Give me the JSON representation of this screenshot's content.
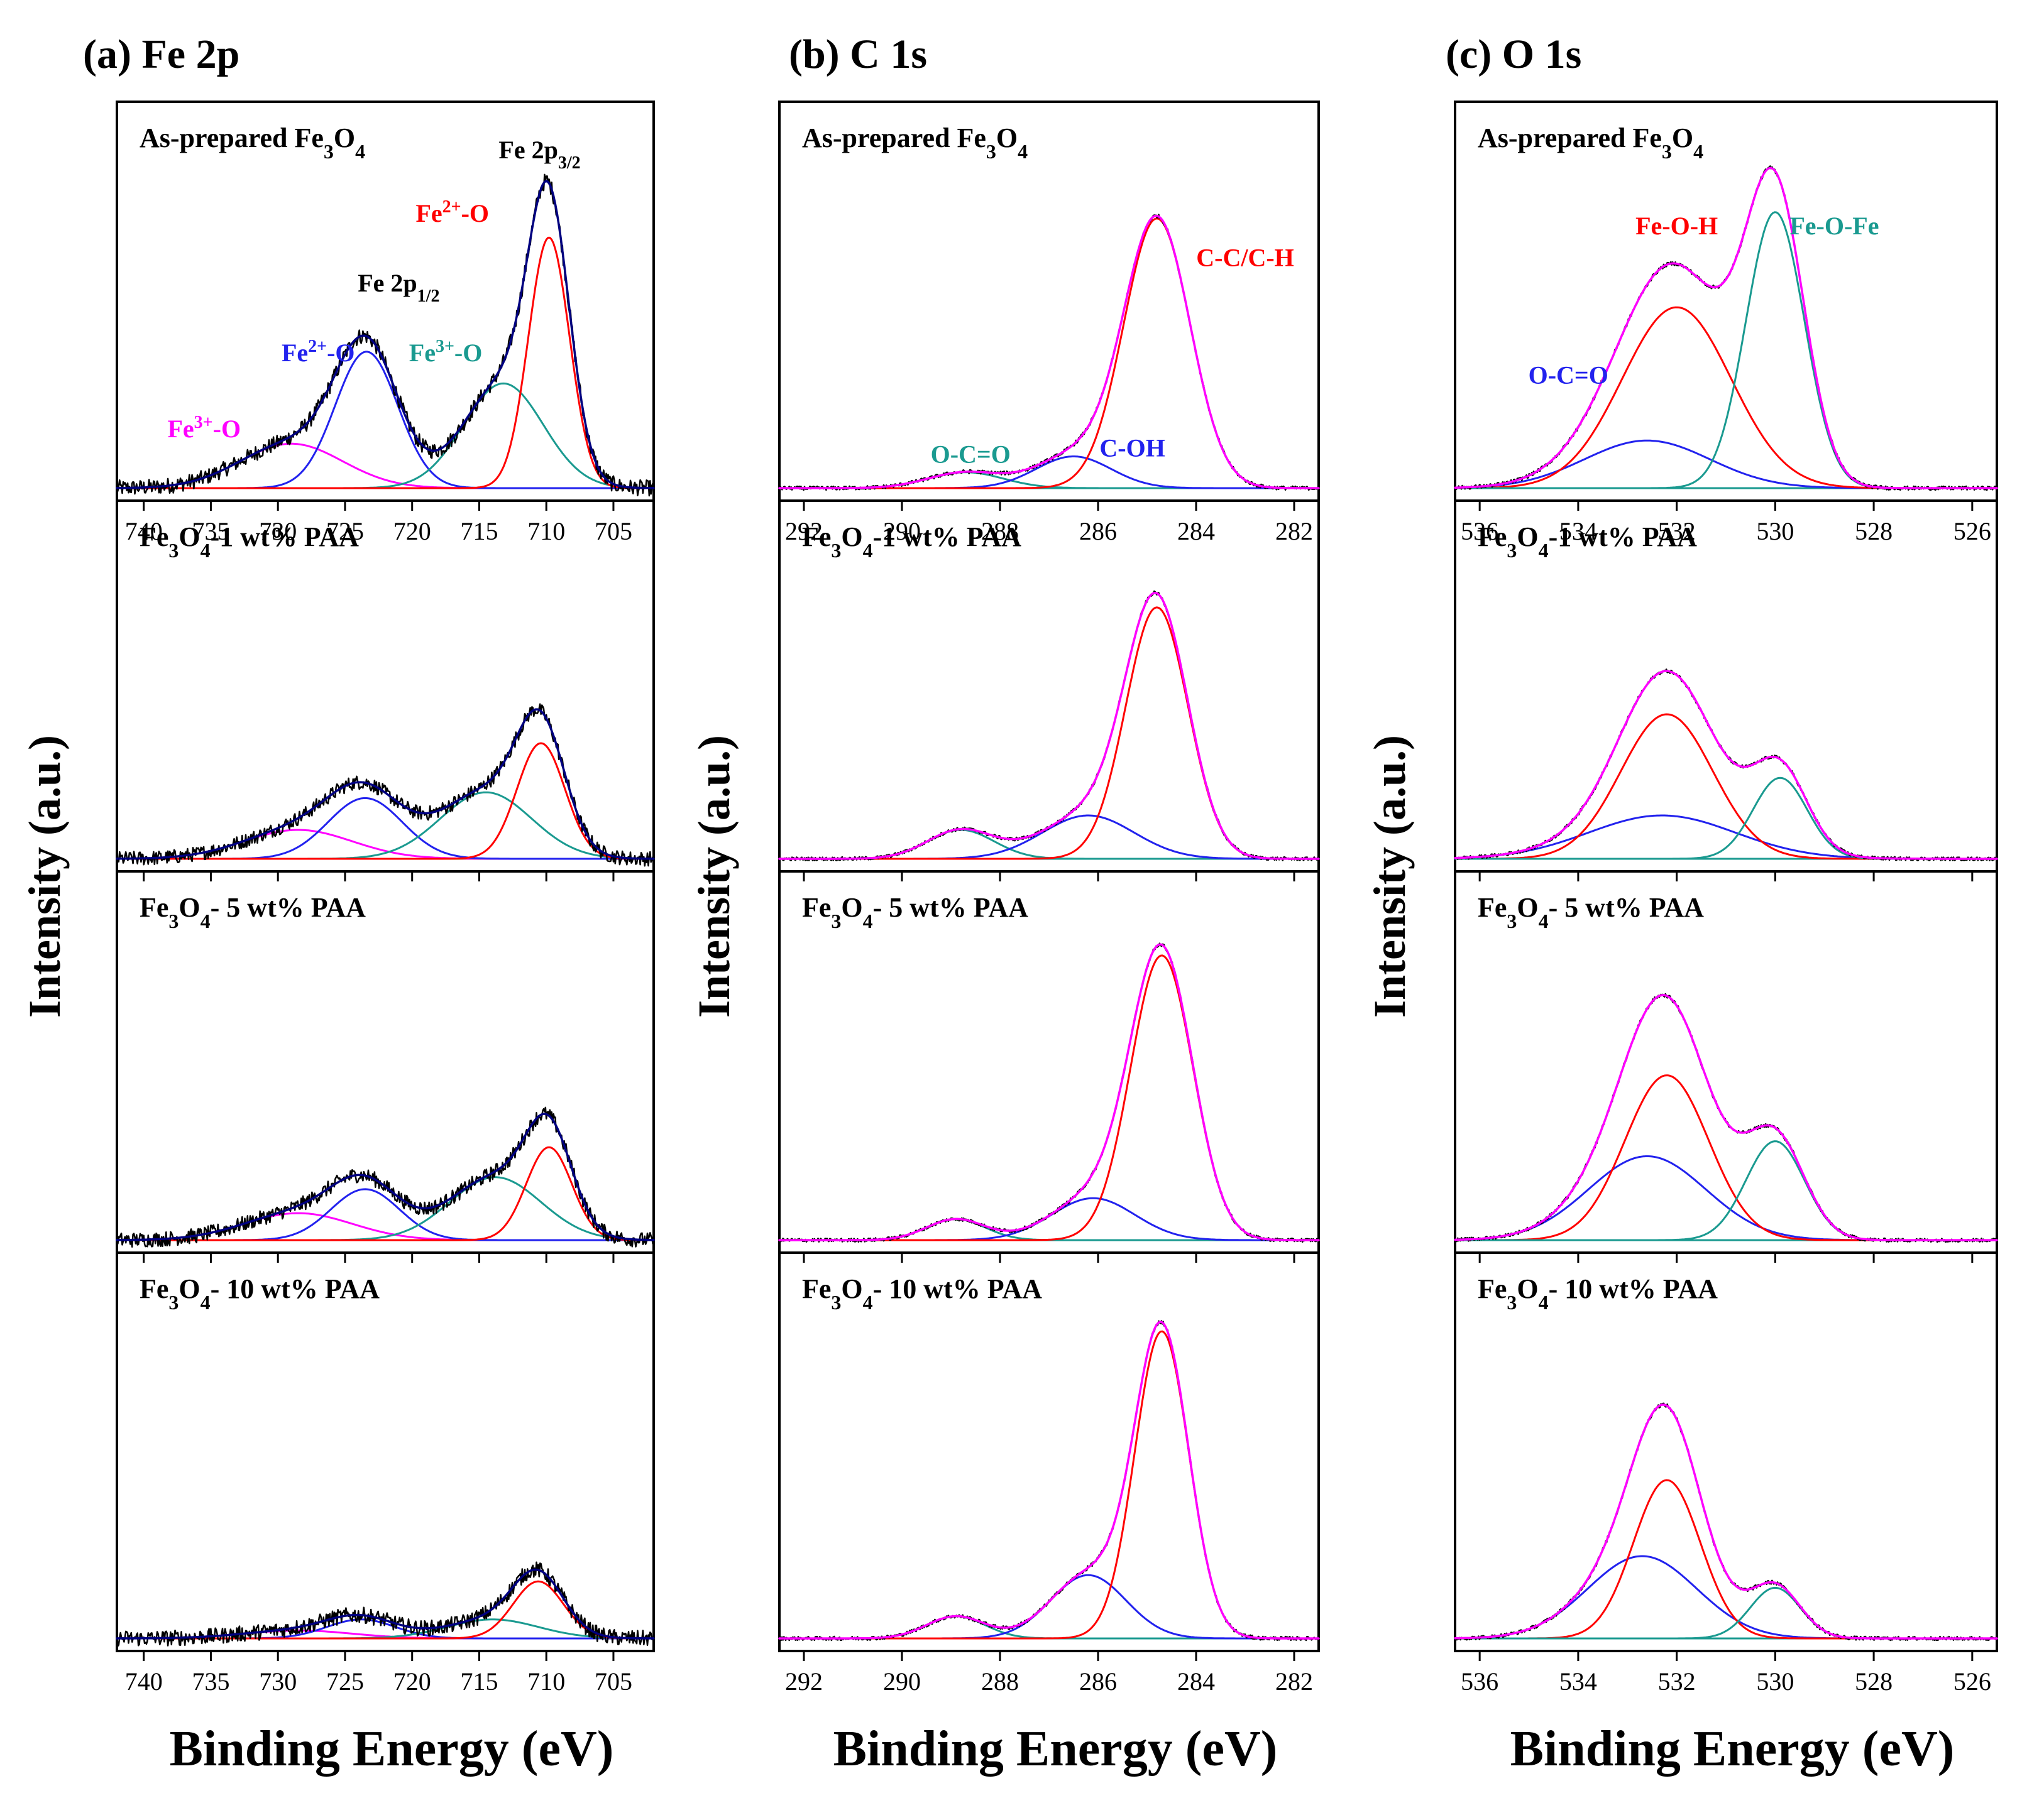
{
  "colors": {
    "raw": "#000000",
    "envelope": "#ff00ff",
    "red": "#ff0000",
    "blue": "#2222ee",
    "teal": "#1a9a90",
    "magenta": "#ff00ff",
    "olive": "#9a9a00",
    "frame": "#000000"
  },
  "figure": {
    "ylabel": "Intensity (a.u.)",
    "xlabel": "Binding Energy (eV)"
  },
  "chart_data": [
    {
      "type": "line",
      "panel_label": "(a) Fe 2p",
      "xlabel": "Binding Energy (eV)",
      "ylabel": "Intensity (a.u.)",
      "xlim": [
        742,
        702
      ],
      "xticks": [
        "740",
        "735",
        "730",
        "725",
        "720",
        "715",
        "710",
        "705"
      ],
      "xtick_values": [
        740,
        735,
        730,
        725,
        720,
        715,
        710,
        705
      ],
      "ylim": [
        0,
        1
      ],
      "rows": [
        {
          "sample": {
            "pre": "As-prepared Fe",
            "s1": "3",
            "mid": "O",
            "s2": "4",
            "post": ""
          },
          "envelope_color": "#000080",
          "baseline_color": "#1a9a90",
          "peaks": [
            {
              "label": "Fe3+-O",
              "center": 729,
              "fwhm": 9.0,
              "height": 0.14,
              "color": "#ff00ff"
            },
            {
              "label": "Fe2+-O",
              "center": 723.4,
              "fwhm": 5.5,
              "height": 0.43,
              "color": "#2222ee"
            },
            {
              "label": "Fe3+-O",
              "center": 713.2,
              "fwhm": 7.0,
              "height": 0.33,
              "color": "#1a9a90"
            },
            {
              "label": "Fe2+-O",
              "center": 709.8,
              "fwhm": 3.6,
              "height": 0.79,
              "color": "#ff0000"
            }
          ],
          "annotations": [
            {
              "pre": "Fe 2p",
              "sub": "1/2",
              "sup": "",
              "post": "",
              "x": 721,
              "y": 0.62,
              "color": "#000000"
            },
            {
              "pre": "Fe 2p",
              "sub": "3/2",
              "sup": "",
              "post": "",
              "x": 710.5,
              "y": 1.04,
              "color": "#000000"
            },
            {
              "pre": "Fe",
              "sub": "",
              "sup": "2+",
              "post": "-O",
              "x": 727,
              "y": 0.4,
              "color": "#2222ee"
            },
            {
              "pre": "Fe",
              "sub": "",
              "sup": "2+",
              "post": "-O",
              "x": 717,
              "y": 0.84,
              "color": "#ff0000"
            },
            {
              "pre": "Fe",
              "sub": "",
              "sup": "3+",
              "post": "-O",
              "x": 717.5,
              "y": 0.4,
              "color": "#1a9a90"
            },
            {
              "pre": "Fe",
              "sub": "",
              "sup": "3+",
              "post": "-O",
              "x": 735.5,
              "y": 0.16,
              "color": "#ff00ff"
            }
          ]
        },
        {
          "sample": {
            "pre": "Fe",
            "s1": "3",
            "mid": "O",
            "s2": "4",
            "post": "-1 wt% PAA"
          },
          "envelope_color": "#000080",
          "baseline_color": "#9a9a00",
          "peaks": [
            {
              "label": "Fe3+-O",
              "center": 728.5,
              "fwhm": 9.5,
              "height": 0.1,
              "color": "#ff00ff"
            },
            {
              "label": "Fe2+-O",
              "center": 723.5,
              "fwhm": 6.5,
              "height": 0.21,
              "color": "#2222ee"
            },
            {
              "label": "Fe3+-O",
              "center": 714.5,
              "fwhm": 8.0,
              "height": 0.23,
              "color": "#1a9a90"
            },
            {
              "label": "Fe2+-O",
              "center": 710.4,
              "fwhm": 4.2,
              "height": 0.4,
              "color": "#ff0000"
            }
          ],
          "annotations": []
        },
        {
          "sample": {
            "pre": "Fe",
            "s1": "3",
            "mid": "O",
            "s2": "4",
            "post": "- 5 wt% PAA"
          },
          "envelope_color": "#000080",
          "baseline_color": "#9a9a00",
          "peaks": [
            {
              "label": "Fe3+-O",
              "center": 728.5,
              "fwhm": 9.5,
              "height": 0.09,
              "color": "#ff00ff"
            },
            {
              "label": "Fe2+-O",
              "center": 723.5,
              "fwhm": 6.0,
              "height": 0.17,
              "color": "#2222ee"
            },
            {
              "label": "Fe3+-O",
              "center": 713.8,
              "fwhm": 8.0,
              "height": 0.21,
              "color": "#1a9a90"
            },
            {
              "label": "Fe2+-O",
              "center": 709.8,
              "fwhm": 4.0,
              "height": 0.31,
              "color": "#ff0000"
            }
          ],
          "annotations": []
        },
        {
          "sample": {
            "pre": "Fe",
            "s1": "3",
            "mid": "O",
            "s2": "4",
            "post": "- 10 wt% PAA"
          },
          "envelope_color": "#000080",
          "baseline_color": "#9a9a00",
          "peaks": [
            {
              "label": "Fe3+-O",
              "center": 728.5,
              "fwhm": 9.5,
              "height": 0.025,
              "color": "#ff00ff"
            },
            {
              "label": "Fe2+-O",
              "center": 723.8,
              "fwhm": 6.0,
              "height": 0.06,
              "color": "#2222ee"
            },
            {
              "label": "Fe3+-O",
              "center": 714.0,
              "fwhm": 8.0,
              "height": 0.06,
              "color": "#1a9a90"
            },
            {
              "label": "Fe2+-O",
              "center": 710.6,
              "fwhm": 4.4,
              "height": 0.18,
              "color": "#ff0000"
            }
          ],
          "annotations": []
        }
      ]
    },
    {
      "type": "line",
      "panel_label": "(b) C 1s",
      "xlabel": "Binding Energy (eV)",
      "ylabel": "Intensity (a.u.)",
      "xlim": [
        292.5,
        281.5
      ],
      "xticks": [
        "292",
        "290",
        "288",
        "286",
        "284",
        "282"
      ],
      "xtick_values": [
        292,
        290,
        288,
        286,
        284,
        282
      ],
      "ylim": [
        0,
        1
      ],
      "rows": [
        {
          "sample": {
            "pre": "As-prepared Fe",
            "s1": "3",
            "mid": "O",
            "s2": "4",
            "post": ""
          },
          "envelope_color": "#ff00ff",
          "baseline_color": "#1a9a90",
          "peaks": [
            {
              "label": "O-C=O",
              "center": 288.7,
              "fwhm": 1.8,
              "height": 0.05,
              "color": "#1a9a90"
            },
            {
              "label": "C-OH",
              "center": 286.5,
              "fwhm": 1.8,
              "height": 0.1,
              "color": "#2222ee"
            },
            {
              "label": "C-C/C-H",
              "center": 284.8,
              "fwhm": 1.6,
              "height": 0.85,
              "color": "#ff0000"
            }
          ],
          "annotations": [
            {
              "pre": "C-C/C-H",
              "sub": "",
              "sup": "",
              "post": "",
              "x": 283.0,
              "y": 0.7,
              "color": "#ff0000"
            },
            {
              "pre": "C-OH",
              "sub": "",
              "sup": "",
              "post": "",
              "x": 285.3,
              "y": 0.1,
              "color": "#2222ee"
            },
            {
              "pre": "O-C=O",
              "sub": "",
              "sup": "",
              "post": "",
              "x": 288.6,
              "y": 0.08,
              "color": "#1a9a90"
            }
          ]
        },
        {
          "sample": {
            "pre": "Fe",
            "s1": "3",
            "mid": "O",
            "s2": "4",
            "post": "-1 wt% PAA"
          },
          "envelope_color": "#ff00ff",
          "baseline_color": "#1a9a90",
          "peaks": [
            {
              "label": "O-C=O",
              "center": 288.8,
              "fwhm": 1.6,
              "height": 0.1,
              "color": "#1a9a90"
            },
            {
              "label": "C-OH",
              "center": 286.2,
              "fwhm": 2.2,
              "height": 0.15,
              "color": "#2222ee"
            },
            {
              "label": "C-C/C-H",
              "center": 284.8,
              "fwhm": 1.5,
              "height": 0.87,
              "color": "#ff0000"
            }
          ],
          "annotations": []
        },
        {
          "sample": {
            "pre": "Fe",
            "s1": "3",
            "mid": "O",
            "s2": "4",
            "post": "- 5 wt% PAA"
          },
          "envelope_color": "#ff00ff",
          "baseline_color": "#1a9a90",
          "peaks": [
            {
              "label": "O-C=O",
              "center": 288.9,
              "fwhm": 1.4,
              "height": 0.07,
              "color": "#1a9a90"
            },
            {
              "label": "C-OH",
              "center": 286.1,
              "fwhm": 2.0,
              "height": 0.14,
              "color": "#2222ee"
            },
            {
              "label": "C-C/C-H",
              "center": 284.7,
              "fwhm": 1.5,
              "height": 0.95,
              "color": "#ff0000"
            }
          ],
          "annotations": []
        },
        {
          "sample": {
            "pre": "Fe",
            "s1": "3",
            "mid": "O",
            "s2": "4",
            "post": "- 10 wt% PAA"
          },
          "envelope_color": "#ff00ff",
          "baseline_color": "#1a9a90",
          "peaks": [
            {
              "label": "O-C=O",
              "center": 288.9,
              "fwhm": 1.4,
              "height": 0.07,
              "color": "#1a9a90"
            },
            {
              "label": "C-OH",
              "center": 286.2,
              "fwhm": 1.8,
              "height": 0.2,
              "color": "#2222ee"
            },
            {
              "label": "C-C/C-H",
              "center": 284.7,
              "fwhm": 1.3,
              "height": 0.97,
              "color": "#ff0000"
            }
          ],
          "annotations": []
        }
      ]
    },
    {
      "type": "line",
      "panel_label": "(c) O 1s",
      "xlabel": "Binding Energy (eV)",
      "ylabel": "Intensity (a.u.)",
      "xlim": [
        536.5,
        525.5
      ],
      "xticks": [
        "536",
        "534",
        "532",
        "530",
        "528",
        "526"
      ],
      "xtick_values": [
        536,
        534,
        532,
        530,
        528,
        526
      ],
      "ylim": [
        0,
        1
      ],
      "rows": [
        {
          "sample": {
            "pre": "As-prepared Fe",
            "s1": "3",
            "mid": "O",
            "s2": "4",
            "post": ""
          },
          "envelope_color": "#ff00ff",
          "baseline_color": "#1a9a90",
          "peaks": [
            {
              "label": "O-C=O",
              "center": 532.6,
              "fwhm": 3.0,
              "height": 0.15,
              "color": "#2222ee"
            },
            {
              "label": "Fe-O-H",
              "center": 532.0,
              "fwhm": 2.6,
              "height": 0.57,
              "color": "#ff0000"
            },
            {
              "label": "Fe-O-Fe",
              "center": 530.0,
              "fwhm": 1.4,
              "height": 0.87,
              "color": "#1a9a90"
            }
          ],
          "annotations": [
            {
              "pre": "Fe-O-H",
              "sub": "",
              "sup": "",
              "post": "",
              "x": 532.0,
              "y": 0.8,
              "color": "#ff0000"
            },
            {
              "pre": "Fe-O-Fe",
              "sub": "",
              "sup": "",
              "post": "",
              "x": 528.8,
              "y": 0.8,
              "color": "#1a9a90"
            },
            {
              "pre": "O-C=O",
              "sub": "",
              "sup": "",
              "post": "",
              "x": 534.2,
              "y": 0.33,
              "color": "#2222ee"
            }
          ]
        },
        {
          "sample": {
            "pre": "Fe",
            "s1": "3",
            "mid": "O",
            "s2": "4",
            "post": "-1 wt% PAA"
          },
          "envelope_color": "#ff00ff",
          "baseline_color": "#1a9a90",
          "peaks": [
            {
              "label": "O-C=O",
              "center": 532.3,
              "fwhm": 3.5,
              "height": 0.15,
              "color": "#2222ee"
            },
            {
              "label": "Fe-O-H",
              "center": 532.2,
              "fwhm": 2.2,
              "height": 0.5,
              "color": "#ff0000"
            },
            {
              "label": "Fe-O-Fe",
              "center": 529.9,
              "fwhm": 1.3,
              "height": 0.28,
              "color": "#1a9a90"
            }
          ],
          "annotations": []
        },
        {
          "sample": {
            "pre": "Fe",
            "s1": "3",
            "mid": "O",
            "s2": "4",
            "post": "- 5 wt% PAA"
          },
          "envelope_color": "#ff00ff",
          "baseline_color": "#1a9a90",
          "peaks": [
            {
              "label": "O-C=O",
              "center": 532.6,
              "fwhm": 2.8,
              "height": 0.28,
              "color": "#2222ee"
            },
            {
              "label": "Fe-O-H",
              "center": 532.2,
              "fwhm": 2.0,
              "height": 0.55,
              "color": "#ff0000"
            },
            {
              "label": "Fe-O-Fe",
              "center": 530.0,
              "fwhm": 1.4,
              "height": 0.33,
              "color": "#1a9a90"
            }
          ],
          "annotations": []
        },
        {
          "sample": {
            "pre": "Fe",
            "s1": "3",
            "mid": "O",
            "s2": "4",
            "post": "- 10 wt% PAA"
          },
          "envelope_color": "#ff00ff",
          "baseline_color": "#1a9a90",
          "peaks": [
            {
              "label": "O-C=O",
              "center": 532.7,
              "fwhm": 2.6,
              "height": 0.26,
              "color": "#2222ee"
            },
            {
              "label": "Fe-O-H",
              "center": 532.2,
              "fwhm": 1.6,
              "height": 0.5,
              "color": "#ff0000"
            },
            {
              "label": "Fe-O-Fe",
              "center": 530.0,
              "fwhm": 1.2,
              "height": 0.16,
              "color": "#1a9a90"
            }
          ],
          "annotations": []
        }
      ]
    }
  ]
}
